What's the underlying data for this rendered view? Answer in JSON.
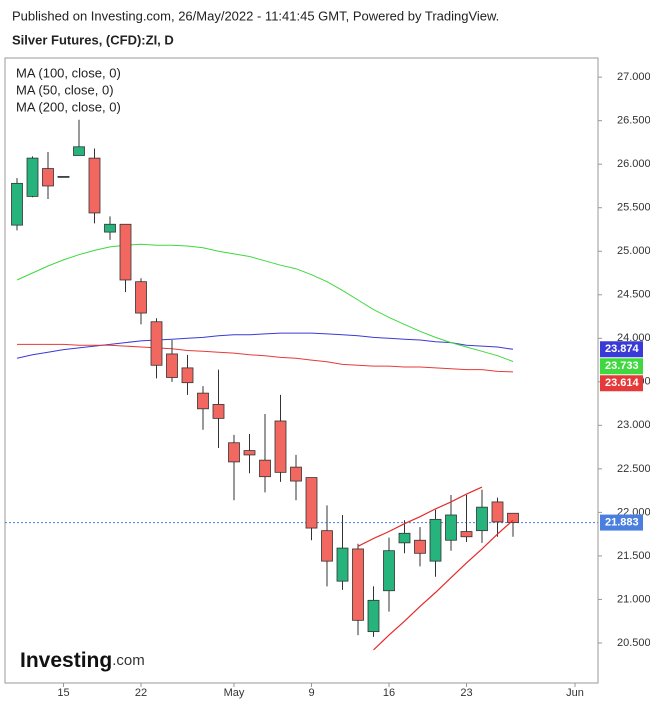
{
  "chart_data": {
    "type": "candlestick",
    "source": "Published on Investing.com, 26/May/2022 - 11:41:45 GMT, Powered by TradingView.",
    "title": "Silver Futures, (CFD):ZI, D",
    "categories": [
      null,
      null,
      null,
      "15",
      null,
      null,
      null,
      null,
      "22",
      null,
      null,
      null,
      null,
      null,
      "May",
      null,
      null,
      null,
      null,
      "9",
      null,
      null,
      null,
      null,
      "16",
      null,
      null,
      null,
      null,
      "23",
      null,
      null,
      null,
      null,
      null,
      null,
      "Jun"
    ],
    "open": [
      25.3,
      25.63,
      25.95,
      25.86,
      26.1,
      26.07,
      25.22,
      25.31,
      24.65,
      24.19,
      23.82,
      23.66,
      23.37,
      23.24,
      22.8,
      22.71,
      22.6,
      23.05,
      22.52,
      22.4,
      21.79,
      21.21,
      21.58,
      20.63,
      21.1,
      21.65,
      21.68,
      21.44,
      21.68,
      21.78,
      21.79,
      22.12,
      21.99,
      null,
      null,
      null,
      null
    ],
    "high": [
      25.84,
      26.09,
      26.14,
      25.86,
      26.51,
      26.18,
      25.4,
      25.31,
      24.69,
      24.23,
      23.98,
      23.81,
      23.45,
      23.64,
      22.89,
      22.9,
      23.13,
      23.35,
      22.66,
      22.4,
      22.08,
      21.97,
      21.64,
      21.15,
      21.71,
      21.91,
      21.83,
      22.03,
      22.2,
      22.2,
      22.26,
      22.17,
      21.99,
      null,
      null,
      null,
      null
    ],
    "low": [
      25.24,
      25.62,
      25.6,
      25.86,
      26.1,
      25.32,
      25.13,
      24.53,
      24.16,
      23.54,
      23.5,
      23.35,
      22.95,
      22.74,
      22.14,
      22.45,
      22.23,
      22.35,
      22.14,
      21.68,
      21.15,
      21.11,
      20.59,
      20.57,
      20.86,
      21.53,
      21.38,
      21.26,
      21.56,
      21.66,
      21.65,
      21.72,
      21.72,
      null,
      null,
      null,
      null
    ],
    "close": [
      25.78,
      26.07,
      25.75,
      25.86,
      26.2,
      25.44,
      25.31,
      24.67,
      24.29,
      23.69,
      23.55,
      23.49,
      23.19,
      23.08,
      22.58,
      22.66,
      22.41,
      22.46,
      22.36,
      21.82,
      21.44,
      21.59,
      20.76,
      20.99,
      21.56,
      21.76,
      21.53,
      21.92,
      21.97,
      21.72,
      22.06,
      21.89,
      21.883,
      null,
      null,
      null,
      null
    ],
    "up_color": "#26b47c",
    "down_color": "#f26860",
    "indicators": [
      {
        "name": "MA (100, close, 0)",
        "color": "#3a3ad6",
        "values": [
          23.77,
          23.81,
          23.84,
          23.87,
          23.89,
          23.91,
          23.93,
          23.95,
          23.97,
          23.98,
          23.99,
          24.0,
          24.01,
          24.03,
          24.04,
          24.04,
          24.05,
          24.06,
          24.06,
          24.06,
          24.05,
          24.04,
          24.03,
          24.01,
          24.0,
          23.99,
          23.98,
          23.96,
          23.95,
          23.92,
          23.91,
          23.9,
          23.874,
          null,
          null,
          null,
          null
        ]
      },
      {
        "name": "MA (50, close, 0)",
        "color": "#3fd83f",
        "values": [
          24.67,
          24.75,
          24.83,
          24.9,
          24.96,
          25.01,
          25.05,
          25.07,
          25.08,
          25.07,
          25.07,
          25.06,
          25.04,
          25.0,
          24.97,
          24.94,
          24.89,
          24.84,
          24.8,
          24.73,
          24.65,
          24.55,
          24.44,
          24.33,
          24.24,
          24.16,
          24.08,
          24.01,
          23.95,
          23.9,
          23.85,
          23.8,
          23.733,
          null,
          null,
          null,
          null
        ]
      },
      {
        "name": "MA (200, close, 0)",
        "color": "#e63a3a",
        "values": [
          23.93,
          23.93,
          23.93,
          23.93,
          23.92,
          23.92,
          23.92,
          23.91,
          23.9,
          23.89,
          23.88,
          23.86,
          23.85,
          23.84,
          23.83,
          23.81,
          23.8,
          23.78,
          23.77,
          23.75,
          23.73,
          23.7,
          23.69,
          23.68,
          23.68,
          23.67,
          23.67,
          23.66,
          23.65,
          23.64,
          23.64,
          23.62,
          23.614,
          null,
          null,
          null,
          null
        ]
      }
    ],
    "trendlines": [
      {
        "color": "#e52a2a",
        "values": [
          null,
          null,
          null,
          null,
          null,
          null,
          null,
          null,
          null,
          null,
          null,
          null,
          null,
          null,
          null,
          null,
          null,
          null,
          null,
          null,
          null,
          null,
          21.61,
          21.7,
          21.78,
          21.87,
          21.95,
          22.04,
          22.12,
          22.21,
          22.29,
          null,
          null,
          null,
          null,
          null,
          null
        ]
      },
      {
        "color": "#e52a2a",
        "values": [
          null,
          null,
          null,
          null,
          null,
          null,
          null,
          null,
          null,
          null,
          null,
          null,
          null,
          null,
          null,
          null,
          null,
          null,
          null,
          null,
          null,
          null,
          null,
          20.42,
          20.59,
          20.75,
          20.92,
          21.08,
          21.25,
          21.42,
          21.58,
          21.75,
          21.91,
          null,
          null,
          null,
          null
        ]
      }
    ],
    "last_price_color": "#4a7fe0",
    "ylim": [
      20.04,
      27.22
    ],
    "yticks": [
      {
        "value": 20.5,
        "label": "20.500"
      },
      {
        "value": 21,
        "label": "21.000"
      },
      {
        "value": 21.5,
        "label": "21.500"
      },
      {
        "value": 22,
        "label": "22.000"
      },
      {
        "value": 22.5,
        "label": "22.500"
      },
      {
        "value": 23,
        "label": "23.000"
      },
      {
        "value": 23.5,
        "label": "23.500"
      },
      {
        "value": 24,
        "label": "24.000"
      },
      {
        "value": 24.5,
        "label": "24.500"
      },
      {
        "value": 25,
        "label": "25.000"
      },
      {
        "value": 25.5,
        "label": "25.500"
      },
      {
        "value": 26,
        "label": "26.000"
      },
      {
        "value": 26.5,
        "label": "26.500"
      },
      {
        "value": 27,
        "label": "27.000"
      }
    ],
    "logo": {
      "name": "Investing",
      "suffix": ".com"
    }
  }
}
